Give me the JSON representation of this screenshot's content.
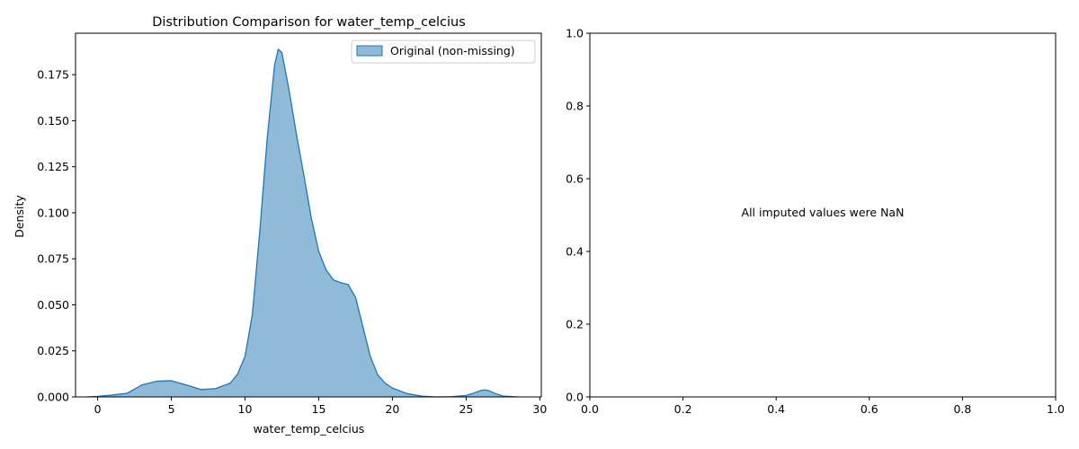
{
  "chart_data": [
    {
      "type": "area",
      "title": "Distribution Comparison for water_temp_celcius",
      "xlabel": "water_temp_celcius",
      "ylabel": "Density",
      "xlim": [
        -1.5,
        30.1
      ],
      "ylim": [
        0,
        0.1975
      ],
      "xticks": [
        0,
        5,
        10,
        15,
        20,
        25,
        30
      ],
      "yticks": [
        0.0,
        0.025,
        0.05,
        0.075,
        0.1,
        0.125,
        0.15,
        0.175
      ],
      "xtick_labels": [
        "0",
        "5",
        "10",
        "15",
        "20",
        "25",
        "30"
      ],
      "ytick_labels": [
        "0.000",
        "0.025",
        "0.050",
        "0.075",
        "0.100",
        "0.125",
        "0.150",
        "0.175"
      ],
      "grid": false,
      "legend_position": "top-right",
      "series": [
        {
          "name": "Original (non-missing)",
          "color": "#1f77b4",
          "fill_color": "#1f77b4",
          "fill_opacity": 0.5,
          "x": [
            -0.7,
            0.0,
            1.0,
            2.0,
            3.0,
            4.0,
            5.0,
            6.0,
            7.0,
            8.0,
            9.0,
            9.5,
            10.0,
            10.5,
            11.0,
            11.5,
            12.0,
            12.25,
            12.5,
            13.0,
            13.5,
            14.0,
            14.5,
            15.0,
            15.5,
            16.0,
            16.5,
            17.0,
            17.5,
            18.0,
            18.5,
            19.0,
            19.5,
            20.0,
            21.0,
            22.0,
            23.0,
            24.0,
            25.0,
            25.5,
            26.0,
            26.3,
            26.6,
            27.0,
            27.5,
            28.5
          ],
          "y": [
            0.0,
            0.0003,
            0.001,
            0.002,
            0.0065,
            0.0085,
            0.0088,
            0.0065,
            0.004,
            0.0045,
            0.0075,
            0.0125,
            0.022,
            0.045,
            0.09,
            0.14,
            0.18,
            0.1888,
            0.187,
            0.166,
            0.142,
            0.12,
            0.097,
            0.079,
            0.069,
            0.0635,
            0.062,
            0.061,
            0.054,
            0.038,
            0.022,
            0.012,
            0.0075,
            0.0048,
            0.0018,
            0.0004,
            0.0,
            0.0001,
            0.0008,
            0.002,
            0.0035,
            0.0038,
            0.0032,
            0.0018,
            0.0005,
            0.0
          ]
        }
      ]
    },
    {
      "type": "scatter",
      "title": "",
      "xlabel": "",
      "ylabel": "",
      "xlim": [
        0,
        1
      ],
      "ylim": [
        0,
        1
      ],
      "xticks": [
        0.0,
        0.2,
        0.4,
        0.6,
        0.8,
        1.0
      ],
      "yticks": [
        0.0,
        0.2,
        0.4,
        0.6,
        0.8,
        1.0
      ],
      "xtick_labels": [
        "0.0",
        "0.2",
        "0.4",
        "0.6",
        "0.8",
        "1.0"
      ],
      "ytick_labels": [
        "0.0",
        "0.2",
        "0.4",
        "0.6",
        "0.8",
        "1.0"
      ],
      "grid": false,
      "annotation": {
        "text": "All imputed values were NaN",
        "x": 0.5,
        "y": 0.5
      },
      "series": []
    }
  ]
}
